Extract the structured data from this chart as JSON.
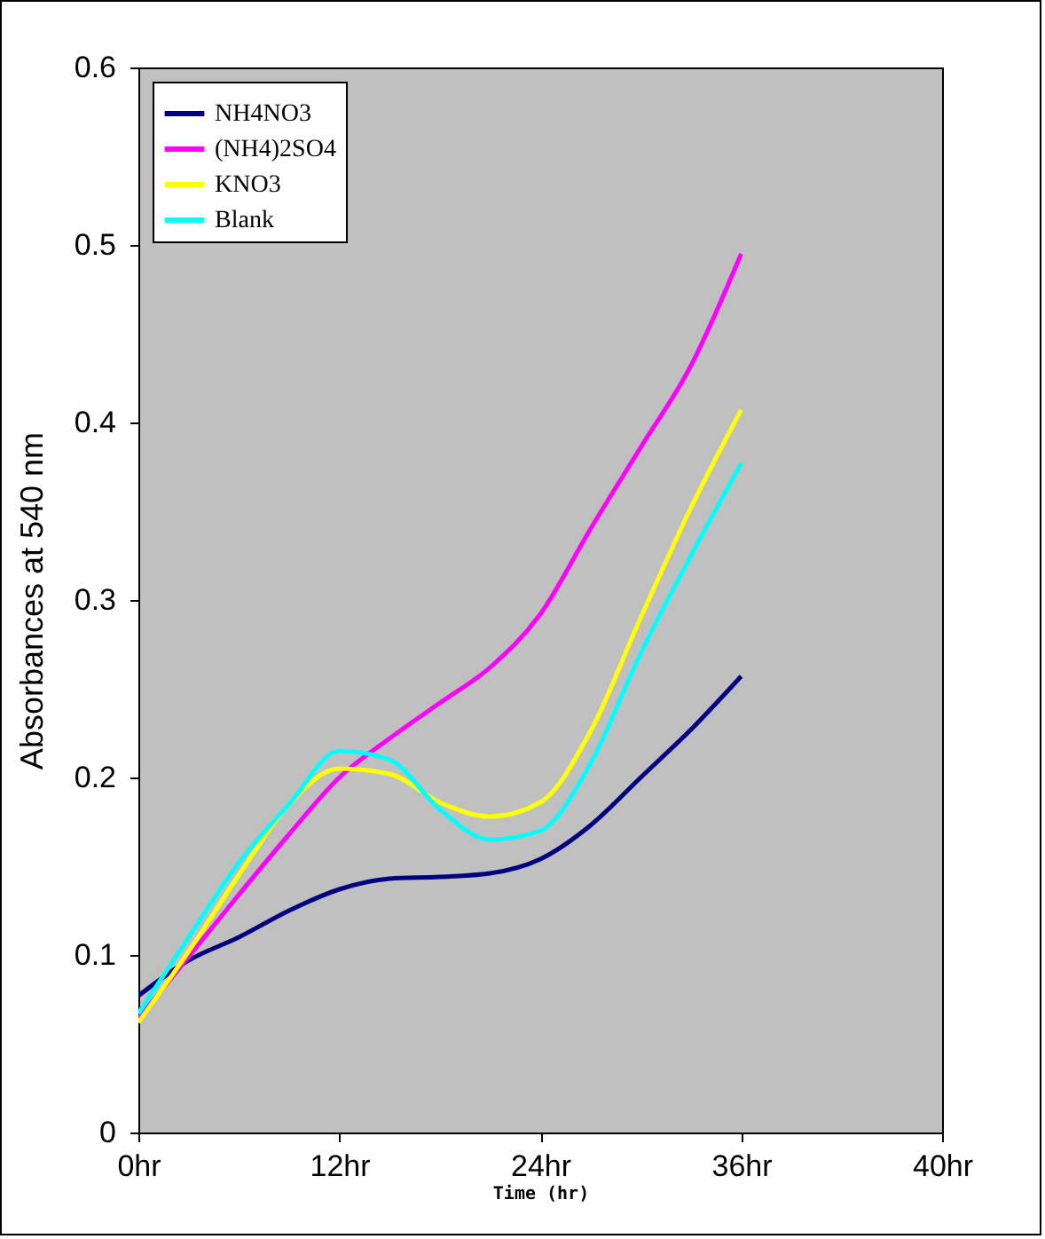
{
  "chart_data": {
    "type": "line",
    "xlabel": "Time (hr)",
    "ylabel": "Absorbances at 540 nm",
    "categories": [
      "0hr",
      null,
      null,
      null,
      "12hr",
      null,
      null,
      null,
      "24hr",
      null,
      null,
      null,
      "36hr",
      null,
      null,
      null,
      "40hr"
    ],
    "ylim": [
      0,
      0.6
    ],
    "yticks": [
      0,
      0.1,
      0.2,
      0.3,
      0.4,
      0.5,
      0.6
    ],
    "grid": false,
    "legend": "top left",
    "marker": "none",
    "line_style": "solid",
    "series": [
      {
        "name": "NH4NO3",
        "color": "#000080",
        "values": [
          0.077,
          0.097,
          0.11,
          0.125,
          0.137,
          0.143,
          0.144,
          0.146,
          0.154,
          0.173,
          0.2,
          0.227,
          0.257,
          null,
          null,
          null,
          null
        ]
      },
      {
        "name": "(NH4)2SO4",
        "color": "#ff00ff",
        "values": [
          0.064,
          0.099,
          0.134,
          0.168,
          0.2,
          0.222,
          0.242,
          0.262,
          0.292,
          0.34,
          0.386,
          0.432,
          0.495,
          null,
          null,
          null,
          null
        ]
      },
      {
        "name": "KNO3",
        "color": "#ffff00",
        "values": [
          0.062,
          0.102,
          0.145,
          0.185,
          0.205,
          0.202,
          0.186,
          0.178,
          0.186,
          0.226,
          0.29,
          0.352,
          0.407,
          null,
          null,
          null,
          null
        ]
      },
      {
        "name": "Blank",
        "color": "#00ffff",
        "values": [
          0.067,
          0.11,
          0.152,
          0.185,
          0.215,
          0.21,
          0.182,
          0.165,
          0.17,
          0.208,
          0.27,
          0.325,
          0.377,
          null,
          null,
          null,
          null
        ]
      }
    ]
  }
}
